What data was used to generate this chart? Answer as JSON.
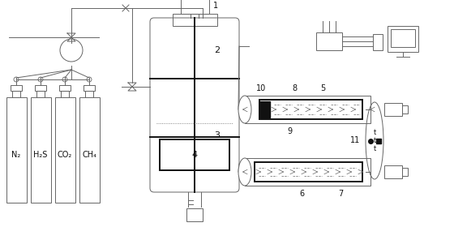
{
  "bg_color": "#ffffff",
  "line_color": "#666666",
  "dark_color": "#111111",
  "fig_width": 5.6,
  "fig_height": 2.8,
  "dpi": 100,
  "labels": {
    "N2": "N₂",
    "H2S": "H₂S",
    "CO2": "CO₂",
    "CH4": "CH₄",
    "1": "1",
    "2": "2",
    "3": "3",
    "4": "4",
    "5": "5",
    "6": "6",
    "7": "7",
    "8": "8",
    "9": "9",
    "10": "10",
    "11": "11"
  }
}
